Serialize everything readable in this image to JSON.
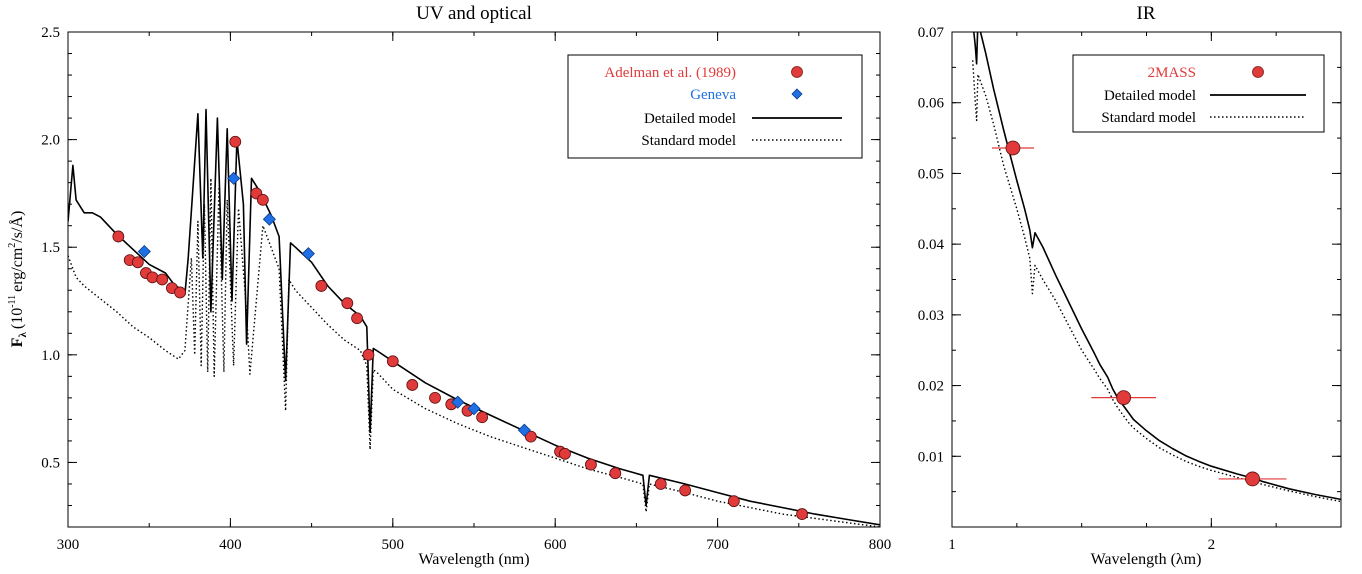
{
  "chart_data": [
    {
      "type": "line",
      "title": "UV and optical",
      "xlabel": "Wavelength (nm)",
      "ylabel": "F",
      "ylabel_sub": "λ",
      "ylabel_rest": "(10",
      "ylabel_exp": "-11",
      "ylabel_unit": "erg/cm",
      "ylabel_unit_exp": "2",
      "ylabel_tail": "/s/Å)",
      "xlim": [
        300,
        800
      ],
      "ylim": [
        0.2,
        2.5
      ],
      "xticks": [
        300,
        400,
        500,
        600,
        700,
        800
      ],
      "xtick_labels": [
        "300",
        "400",
        "500",
        "600",
        "700",
        "800"
      ],
      "yticks": [
        0.5,
        1.0,
        1.5,
        2.0,
        2.5
      ],
      "ytick_labels": [
        "0.5",
        "1.0",
        "1.5",
        "2.0",
        "2.5"
      ],
      "legend_position": "top-right",
      "legend": [
        {
          "label": "Adelman et al. (1989)",
          "color": "#e03a3a",
          "marker": "circle"
        },
        {
          "label": "Geneva",
          "color": "#1f6fe5",
          "marker": "diamond"
        },
        {
          "label": "Detailed model",
          "style": "solid"
        },
        {
          "label": "Standard model",
          "style": "dotted"
        }
      ],
      "series": [
        {
          "name": "Adelman et al. (1989)",
          "kind": "points",
          "color": "#e03a3a",
          "x": [
            331,
            338,
            343,
            348,
            352,
            358,
            364,
            369,
            403,
            416,
            420,
            456,
            472,
            478,
            485,
            500,
            512,
            526,
            536,
            546,
            555,
            585,
            603,
            606,
            622,
            637,
            665,
            680,
            710,
            752
          ],
          "y": [
            1.55,
            1.44,
            1.43,
            1.38,
            1.36,
            1.35,
            1.31,
            1.29,
            1.99,
            1.75,
            1.72,
            1.32,
            1.24,
            1.17,
            1.0,
            0.97,
            0.86,
            0.8,
            0.77,
            0.74,
            0.71,
            0.62,
            0.55,
            0.54,
            0.49,
            0.45,
            0.4,
            0.37,
            0.32,
            0.26
          ]
        },
        {
          "name": "Geneva",
          "kind": "points",
          "color": "#1f6fe5",
          "x": [
            347,
            402,
            424,
            448,
            540,
            550,
            581
          ],
          "y": [
            1.48,
            1.82,
            1.63,
            1.47,
            0.78,
            0.75,
            0.65
          ]
        },
        {
          "name": "Detailed model",
          "kind": "line",
          "style": "solid",
          "x": [
            300,
            303,
            305,
            310,
            315,
            320,
            330,
            340,
            350,
            360,
            365,
            370,
            372,
            374,
            377,
            380,
            383,
            385,
            388,
            392,
            395,
            398,
            401,
            404,
            408,
            410,
            413,
            418,
            425,
            430,
            434,
            437,
            440,
            450,
            460,
            470,
            480,
            484,
            486,
            488,
            490,
            500,
            520,
            540,
            560,
            580,
            600,
            620,
            640,
            654,
            656,
            658,
            680,
            700,
            720,
            740,
            760,
            780,
            800
          ],
          "y": [
            1.62,
            1.88,
            1.72,
            1.66,
            1.66,
            1.64,
            1.56,
            1.49,
            1.42,
            1.38,
            1.33,
            1.3,
            1.28,
            1.45,
            1.78,
            2.12,
            1.45,
            2.14,
            1.2,
            2.1,
            1.35,
            2.05,
            1.25,
            2.0,
            1.7,
            1.05,
            1.82,
            1.76,
            1.65,
            1.55,
            0.88,
            1.52,
            1.5,
            1.43,
            1.32,
            1.24,
            1.18,
            1.13,
            0.64,
            1.03,
            1.02,
            0.97,
            0.87,
            0.79,
            0.72,
            0.65,
            0.58,
            0.52,
            0.47,
            0.44,
            0.3,
            0.44,
            0.4,
            0.36,
            0.32,
            0.29,
            0.26,
            0.235,
            0.21
          ]
        },
        {
          "name": "Standard model",
          "kind": "line",
          "style": "dotted",
          "x": [
            300,
            305,
            310,
            320,
            330,
            340,
            350,
            360,
            368,
            372,
            376,
            378,
            380,
            382,
            384,
            386,
            388,
            390,
            393,
            396,
            398,
            402,
            405,
            410,
            412,
            420,
            430,
            434,
            436,
            440,
            450,
            460,
            470,
            480,
            484,
            486,
            488,
            490,
            500,
            520,
            540,
            560,
            580,
            600,
            620,
            640,
            654,
            656,
            658,
            680,
            700,
            720,
            740,
            760,
            780,
            800
          ],
          "y": [
            1.46,
            1.36,
            1.32,
            1.26,
            1.2,
            1.13,
            1.08,
            1.02,
            0.98,
            1.02,
            1.45,
            1.0,
            1.62,
            0.95,
            1.7,
            0.92,
            1.82,
            0.9,
            1.78,
            0.92,
            1.72,
            0.95,
            1.68,
            1.2,
            0.91,
            1.6,
            1.4,
            0.74,
            1.35,
            1.3,
            1.22,
            1.14,
            1.07,
            1.02,
            0.95,
            0.56,
            0.93,
            0.92,
            0.84,
            0.75,
            0.68,
            0.62,
            0.57,
            0.52,
            0.47,
            0.43,
            0.4,
            0.27,
            0.4,
            0.36,
            0.32,
            0.29,
            0.26,
            0.24,
            0.22,
            0.2
          ]
        }
      ]
    },
    {
      "type": "line",
      "title": "IR",
      "xlabel": "Wavelength (λm)",
      "xlim": [
        1.0,
        2.5
      ],
      "ylim": [
        0.0,
        0.07
      ],
      "xticks": [
        1,
        2
      ],
      "xtick_labels": [
        "1",
        "2"
      ],
      "yticks": [
        0.01,
        0.02,
        0.03,
        0.04,
        0.05,
        0.06,
        0.07
      ],
      "ytick_labels": [
        "0.01",
        "0.02",
        "0.03",
        "0.04",
        "0.05",
        "0.06",
        "0.07"
      ],
      "legend_position": "top-right",
      "legend": [
        {
          "label": "2MASS",
          "color": "#e03a3a",
          "marker": "circle"
        },
        {
          "label": "Detailed model",
          "style": "solid"
        },
        {
          "label": "Standard model",
          "style": "dotted"
        }
      ],
      "series": [
        {
          "name": "2MASS",
          "kind": "points",
          "color": "#e03a3a",
          "x": [
            1.235,
            1.662,
            2.159
          ],
          "y": [
            0.0536,
            0.0183,
            0.0068
          ],
          "xerr": [
            0.081,
            0.125,
            0.131
          ]
        },
        {
          "name": "Detailed model",
          "kind": "line",
          "style": "solid",
          "x": [
            1.08,
            1.09,
            1.095,
            1.1,
            1.13,
            1.16,
            1.2,
            1.25,
            1.28,
            1.3,
            1.31,
            1.32,
            1.35,
            1.4,
            1.45,
            1.5,
            1.55,
            1.57,
            1.6,
            1.62,
            1.64,
            1.66,
            1.68,
            1.7,
            1.75,
            1.8,
            1.85,
            1.9,
            1.95,
            2.0,
            2.1,
            2.17,
            2.2,
            2.3,
            2.4,
            2.5
          ],
          "y": [
            0.0715,
            0.068,
            0.0655,
            0.0715,
            0.067,
            0.062,
            0.056,
            0.049,
            0.045,
            0.042,
            0.0395,
            0.0416,
            0.0396,
            0.0356,
            0.0318,
            0.028,
            0.0245,
            0.023,
            0.0212,
            0.0195,
            0.0182,
            0.0172,
            0.0162,
            0.0152,
            0.0136,
            0.0122,
            0.0111,
            0.0101,
            0.0093,
            0.0086,
            0.0075,
            0.0068,
            0.0064,
            0.0054,
            0.0046,
            0.0039
          ]
        },
        {
          "name": "Standard model",
          "kind": "line",
          "style": "dotted",
          "x": [
            1.08,
            1.09,
            1.095,
            1.1,
            1.13,
            1.16,
            1.2,
            1.25,
            1.28,
            1.3,
            1.31,
            1.32,
            1.35,
            1.4,
            1.45,
            1.5,
            1.55,
            1.57,
            1.6,
            1.62,
            1.64,
            1.66,
            1.68,
            1.7,
            1.75,
            1.8,
            1.85,
            1.9,
            1.95,
            2.0,
            2.1,
            2.17,
            2.2,
            2.3,
            2.4,
            2.5
          ],
          "y": [
            0.066,
            0.06,
            0.0575,
            0.064,
            0.061,
            0.057,
            0.051,
            0.045,
            0.041,
            0.038,
            0.033,
            0.037,
            0.035,
            0.032,
            0.0285,
            0.025,
            0.0222,
            0.021,
            0.0195,
            0.018,
            0.0168,
            0.0158,
            0.0148,
            0.014,
            0.0125,
            0.0112,
            0.0102,
            0.0093,
            0.0086,
            0.008,
            0.007,
            0.0063,
            0.006,
            0.0051,
            0.0043,
            0.0036
          ]
        }
      ]
    }
  ]
}
